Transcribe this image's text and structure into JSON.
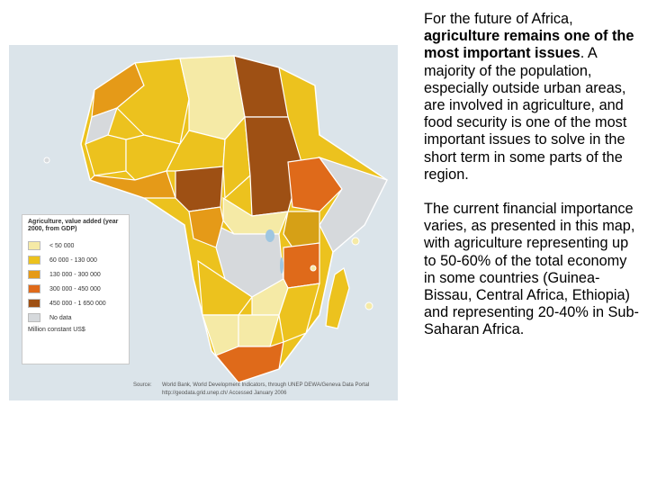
{
  "map": {
    "legend": {
      "title": "Agriculture, value added (year 2000, from GDP)",
      "items": [
        {
          "label": "< 50 000",
          "color": "#f5eaa6"
        },
        {
          "label": "60 000  -  130 000",
          "color": "#ecc21e"
        },
        {
          "label": "130 000  -  300 000",
          "color": "#e59a18"
        },
        {
          "label": "300 000  -  450 000",
          "color": "#df6a1a"
        },
        {
          "label": "450 000  -  1 650 000",
          "color": "#9e5014"
        },
        {
          "label": "No data",
          "color": "#d6d9dc"
        }
      ],
      "footer": "Million constant US$"
    },
    "source_label": "Source:",
    "source_text_1": "World Bank, World Development Indicators, through UNEP DEWA/Geneva Data Portal",
    "source_text_2": "http://geodata.grid.unep.ch/  Accessed January 2006"
  },
  "text": {
    "p1_a": "For the future of Africa, ",
    "p1_bold": "agriculture remains one of the most important issues",
    "p1_b": ". A majority of the population, especially outside urban areas, are involved in agriculture, and food security is one of the most important issues to solve in the short term in some parts of the region.",
    "p2": "The current financial importance varies, as presented in this map, with agriculture representing up to 50-60% of the total economy in some countries (Guinea-Bissau, Central Africa, Ethiopia) and representing 20-40% in Sub-Saharan Africa."
  }
}
